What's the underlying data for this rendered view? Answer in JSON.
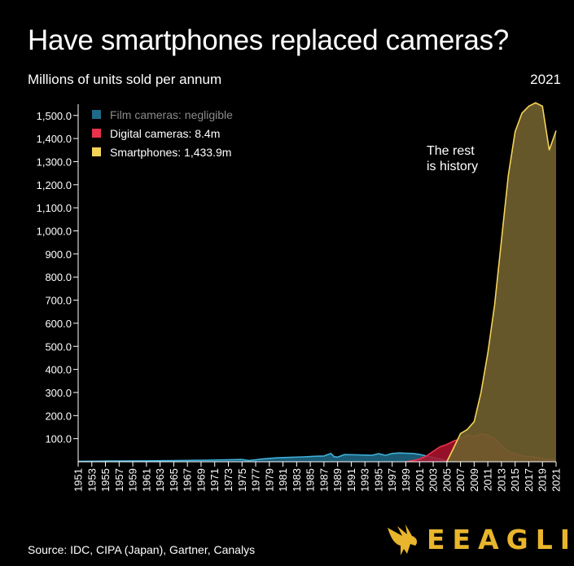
{
  "header": {
    "title": "Have smartphones replaced cameras?",
    "subtitle": "Millions of units sold per annum",
    "year": "2021"
  },
  "footer": {
    "source": "Source: IDC, CIPA (Japan), Gartner, Canalys",
    "logo_text": "EEAGLI",
    "logo_icon": "eagle-icon"
  },
  "chart_data": {
    "type": "area",
    "ylabel": "Millions of units sold per annum",
    "ylim": [
      0,
      1500
    ],
    "y_ticks": [
      "100.0",
      "200.0",
      "300.0",
      "400.0",
      "500.0",
      "600.0",
      "700.0",
      "800.0",
      "900.0",
      "1,000.0",
      "1,100.0",
      "1,200.0",
      "1,300.0",
      "1,400.0",
      "1,500.0"
    ],
    "y_tick_values": [
      100,
      200,
      300,
      400,
      500,
      600,
      700,
      800,
      900,
      1000,
      1100,
      1200,
      1300,
      1400,
      1500
    ],
    "xlim": [
      1951,
      2021
    ],
    "x_ticks": [
      1951,
      1953,
      1955,
      1957,
      1959,
      1961,
      1963,
      1965,
      1967,
      1969,
      1971,
      1973,
      1975,
      1977,
      1979,
      1981,
      1983,
      1985,
      1987,
      1989,
      1991,
      1993,
      1995,
      1997,
      1999,
      2001,
      2003,
      2005,
      2007,
      2009,
      2011,
      2013,
      2015,
      2017,
      2019,
      2021
    ],
    "grid": false,
    "legend_position": "top-left",
    "annotation": [
      "The rest",
      "is history"
    ],
    "series": [
      {
        "name": "Film cameras: negligible",
        "color": "#1f6a8a",
        "line_color": "#3fb0d8",
        "x": [
          1951,
          1955,
          1960,
          1965,
          1970,
          1975,
          1976,
          1978,
          1980,
          1982,
          1984,
          1986,
          1987,
          1988,
          1988.5,
          1989,
          1990,
          1992,
          1994,
          1995,
          1996,
          1997,
          1998,
          1999,
          2000,
          2001,
          2002,
          2003,
          2004,
          2005,
          2006
        ],
        "values": [
          2,
          3,
          4,
          5,
          7,
          10,
          5,
          12,
          17,
          19,
          21,
          24,
          25,
          36,
          22,
          20,
          31,
          30,
          28,
          35,
          28,
          36,
          38,
          37,
          36,
          32,
          25,
          18,
          12,
          5,
          0
        ]
      },
      {
        "name": "Digital cameras: 8.4m",
        "color": "#b0142e",
        "line_color": "#e8334a",
        "x": [
          1999,
          2000,
          2001,
          2002,
          2003,
          2004,
          2005,
          2006,
          2007,
          2008,
          2009,
          2010,
          2011,
          2012,
          2013,
          2014,
          2015,
          2016,
          2017,
          2018,
          2019,
          2020,
          2021
        ],
        "values": [
          0,
          5,
          12,
          25,
          45,
          65,
          75,
          90,
          100,
          115,
          110,
          121,
          115,
          100,
          70,
          45,
          35,
          25,
          22,
          20,
          16,
          9,
          8.4
        ]
      },
      {
        "name": "Smartphones: 1,433.9m",
        "color": "#6e5e2c",
        "line_color": "#f5d35a",
        "x": [
          2005,
          2006,
          2007,
          2008,
          2009,
          2010,
          2011,
          2012,
          2013,
          2014,
          2015,
          2016,
          2017,
          2018,
          2019,
          2020,
          2021
        ],
        "values": [
          0,
          60,
          122,
          140,
          174,
          300,
          470,
          680,
          960,
          1240,
          1430,
          1510,
          1540,
          1555,
          1540,
          1350,
          1433.9
        ]
      }
    ]
  }
}
